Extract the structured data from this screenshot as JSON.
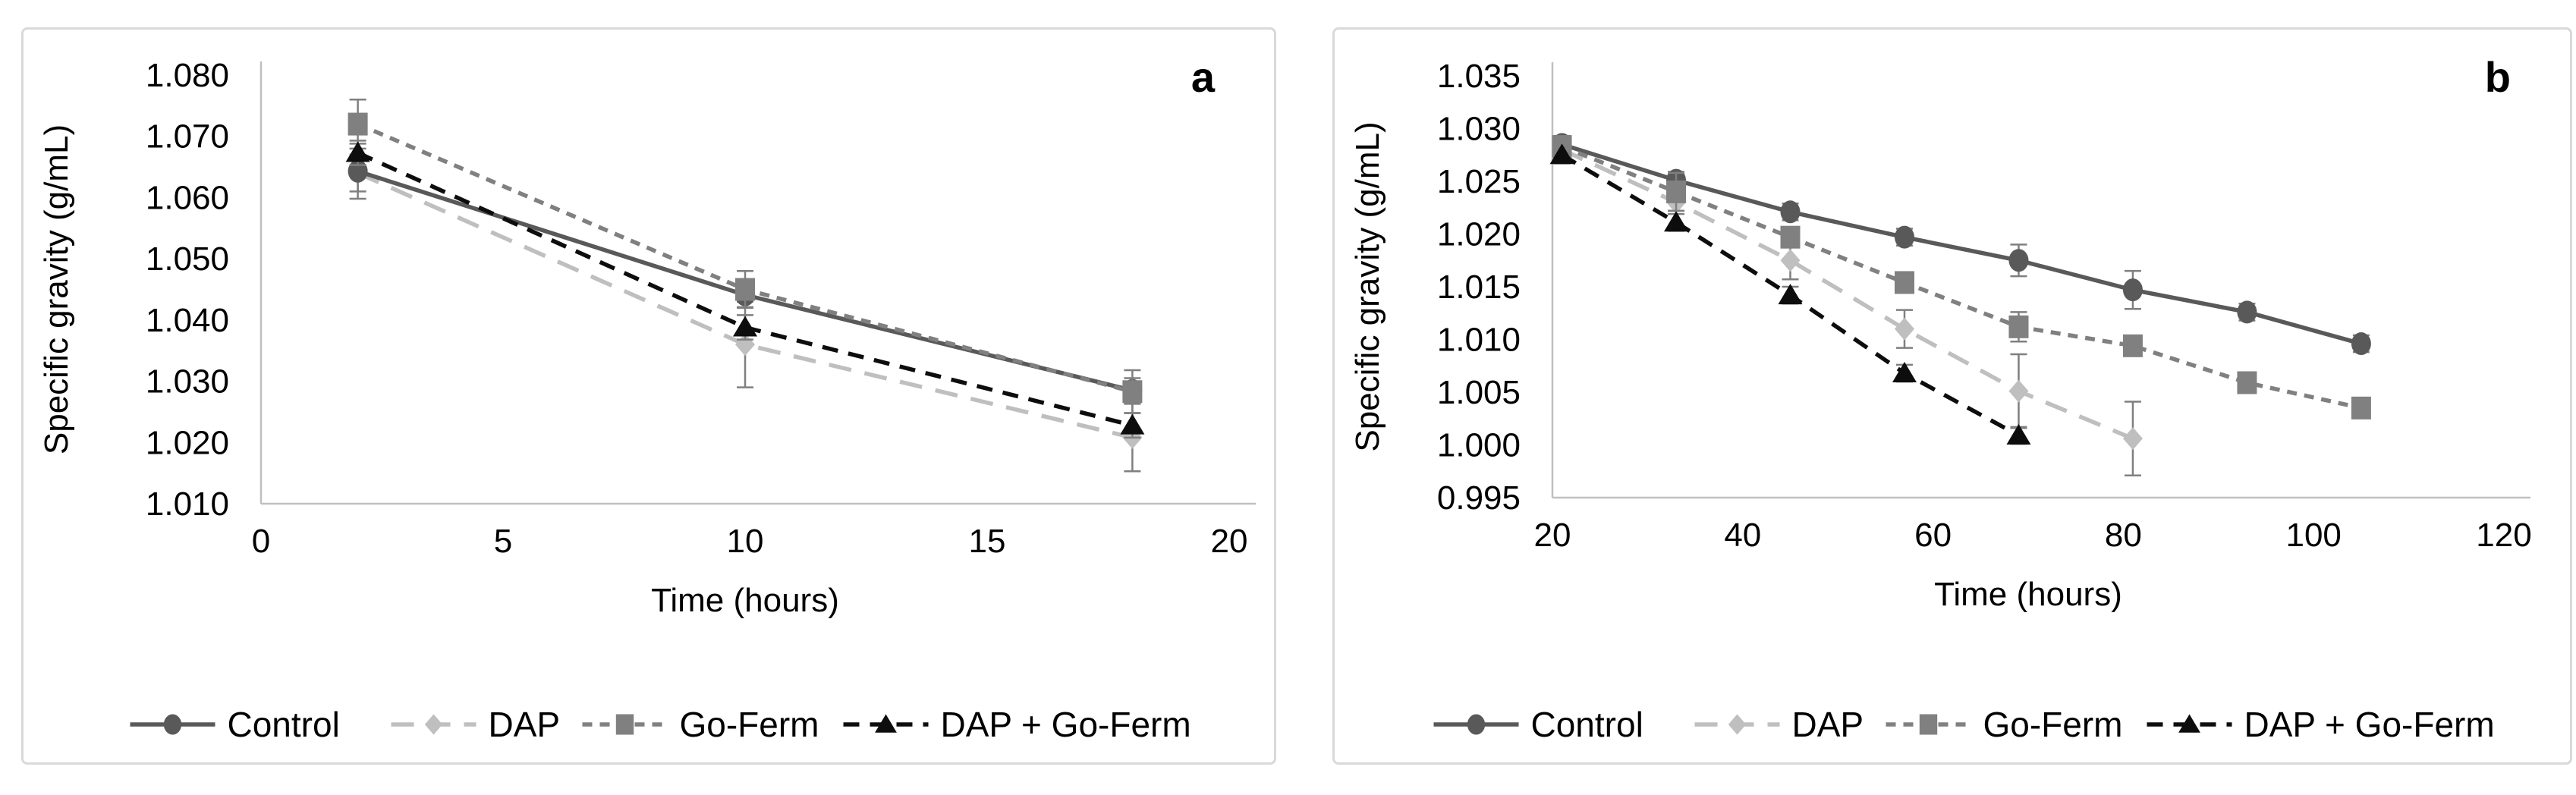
{
  "figure": {
    "background": "#ffffff",
    "panel_border_color": "#d9d9d9",
    "axis_line_color": "#bfbfbf",
    "error_bar_color": "#7f7f7f"
  },
  "panels": [
    {
      "label": "a"
    },
    {
      "label": "b"
    }
  ],
  "legend_labels": [
    "Control",
    "DAP",
    "Go-Ferm",
    "DAP + Go-Ferm"
  ],
  "chart_data": [
    {
      "type": "line",
      "panel": "a",
      "title": "",
      "xlabel": "Time (hours)",
      "ylabel": "Specific gravity (g/mL)",
      "xlim": [
        0,
        20
      ],
      "ylim": [
        1.01,
        1.08
      ],
      "x_tick_values": [
        0,
        5,
        10,
        15,
        20
      ],
      "x_tick_labels": [
        "0",
        "5",
        "10",
        "15",
        "20"
      ],
      "y_tick_values": [
        1.08,
        1.07,
        1.06,
        1.05,
        1.04,
        1.03,
        1.02,
        1.01
      ],
      "y_tick_labels": [
        "1.080",
        "1.070",
        "1.060",
        "1.050",
        "1.040",
        "1.030",
        "1.020",
        "1.010"
      ],
      "grid": false,
      "legend_position": "bottom",
      "series": [
        {
          "name": "Control",
          "color": "#595959",
          "line_style": "solid",
          "marker": "circle",
          "x": [
            2,
            10,
            18
          ],
          "values": [
            1.0643,
            1.0441,
            1.0285
          ],
          "errors": [
            0.0045,
            0.002,
            0.002
          ]
        },
        {
          "name": "DAP",
          "color": "#bfbfbf",
          "line_style": "long-dash",
          "marker": "diamond",
          "x": [
            2,
            10,
            18
          ],
          "values": [
            1.064,
            1.036,
            1.0208
          ],
          "errors": [
            0.003,
            0.007,
            0.0055
          ]
        },
        {
          "name": "Go-Ferm",
          "color": "#808080",
          "line_style": "short-dash",
          "marker": "square",
          "x": [
            2,
            10,
            18
          ],
          "values": [
            1.072,
            1.045,
            1.0283
          ],
          "errors": [
            0.004,
            0.003,
            0.0035
          ]
        },
        {
          "name": "DAP + Go-Ferm",
          "color": "#0d0d0d",
          "line_style": "dash",
          "marker": "triangle",
          "x": [
            2,
            10,
            18
          ],
          "values": [
            1.0673,
            1.0388,
            1.0228
          ],
          "errors": [
            0.002,
            0.002,
            0.002
          ]
        }
      ]
    },
    {
      "type": "line",
      "panel": "b",
      "title": "",
      "xlabel": "Time (hours)",
      "ylabel": "Specific gravity (g/mL)",
      "xlim": [
        20,
        120
      ],
      "ylim": [
        0.995,
        1.035
      ],
      "x_tick_values": [
        20,
        40,
        60,
        80,
        100,
        120
      ],
      "x_tick_labels": [
        "20",
        "40",
        "60",
        "80",
        "100",
        "120"
      ],
      "y_tick_values": [
        1.035,
        1.03,
        1.025,
        1.02,
        1.015,
        1.01,
        1.005,
        1.0,
        0.995
      ],
      "y_tick_labels": [
        "1.035",
        "1.030",
        "1.025",
        "1.020",
        "1.015",
        "1.010",
        "1.005",
        "1.000",
        "0.995"
      ],
      "grid": false,
      "legend_position": "bottom",
      "series": [
        {
          "name": "Control",
          "color": "#595959",
          "line_style": "solid",
          "marker": "circle",
          "x": [
            21,
            33,
            45,
            57,
            69,
            81,
            93,
            105
          ],
          "values": [
            1.0285,
            1.0251,
            1.0221,
            1.0197,
            1.0175,
            1.0147,
            1.0126,
            1.0096
          ],
          "errors": [
            0.0008,
            0.0008,
            0.0008,
            0.0008,
            0.0015,
            0.0018,
            0.0008,
            0.0008
          ]
        },
        {
          "name": "DAP",
          "color": "#bfbfbf",
          "line_style": "long-dash",
          "marker": "diamond",
          "x": [
            21,
            33,
            45,
            57,
            69,
            81
          ],
          "values": [
            1.028,
            1.023,
            1.0175,
            1.011,
            1.0051,
            1.0006
          ],
          "errors": [
            0.0008,
            0.0008,
            0.0018,
            0.0018,
            0.0035,
            0.0035
          ]
        },
        {
          "name": "Go-Ferm",
          "color": "#808080",
          "line_style": "short-dash",
          "marker": "square",
          "x": [
            21,
            33,
            45,
            57,
            69,
            81,
            93,
            105
          ],
          "values": [
            1.0283,
            1.024,
            1.0197,
            1.0154,
            1.0112,
            1.0094,
            1.0059,
            1.0035
          ],
          "errors": [
            0.0008,
            0.0018,
            0.0008,
            0.0008,
            0.0014,
            0.0008,
            0.0008,
            0.0008
          ]
        },
        {
          "name": "DAP + Go-Ferm",
          "color": "#0d0d0d",
          "line_style": "dash",
          "marker": "triangle",
          "x": [
            21,
            33,
            45,
            57,
            69
          ],
          "values": [
            1.0275,
            1.0211,
            1.0142,
            1.0068,
            1.0009
          ],
          "errors": [
            0.0008,
            0.0008,
            0.0008,
            0.0008,
            0.0008
          ]
        }
      ]
    }
  ]
}
